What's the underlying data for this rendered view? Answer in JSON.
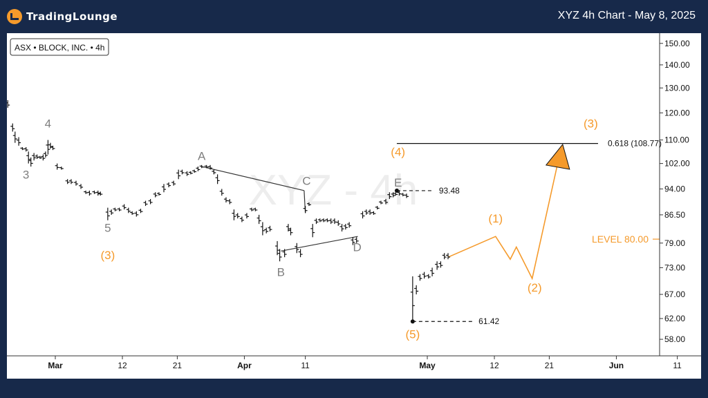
{
  "header": {
    "logo_text": "TradingLounge",
    "chart_title": "XYZ 4h Chart - May 8, 2025"
  },
  "symbol_label": "ASX • BLOCK, INC. • 4h",
  "watermark": "XYZ - 4h",
  "colors": {
    "orange": "#f59a2b",
    "gray_label": "#7f7f7f",
    "bar": "#111111",
    "bg": "#17294a"
  },
  "chart_data": {
    "type": "ohlc",
    "y_scale": "log",
    "ylim": [
      55,
      155
    ],
    "y_ticks": [
      "150.00",
      "140.00",
      "130.00",
      "120.00",
      "110.00",
      "102.00",
      "94.00",
      "86.50",
      "79.00",
      "73.00",
      "67.00",
      "62.00",
      "58.00"
    ],
    "x_ticks": [
      {
        "label": "Mar",
        "day": 0,
        "bold": true
      },
      {
        "label": "12",
        "day": 11,
        "bold": false
      },
      {
        "label": "21",
        "day": 20,
        "bold": false
      },
      {
        "label": "Apr",
        "day": 31,
        "bold": true
      },
      {
        "label": "11",
        "day": 41,
        "bold": false
      },
      {
        "label": "May",
        "day": 61,
        "bold": true
      },
      {
        "label": "12",
        "day": 72,
        "bold": false
      },
      {
        "label": "21",
        "day": 81,
        "bold": false
      },
      {
        "label": "Jun",
        "day": 92,
        "bold": true
      },
      {
        "label": "11",
        "day": 102,
        "bold": false
      }
    ],
    "bars": [
      [
        -8.3,
        121,
        122
      ],
      [
        -7.8,
        122,
        125
      ],
      [
        -7.0,
        113,
        116
      ],
      [
        -6.6,
        109,
        113
      ],
      [
        -6.0,
        108,
        111
      ],
      [
        -5.4,
        106.5,
        107.5
      ],
      [
        -4.8,
        106,
        107.5
      ],
      [
        -4.4,
        102,
        106
      ],
      [
        -4.0,
        101,
        104
      ],
      [
        -3.5,
        103,
        105.5
      ],
      [
        -3.0,
        103.5,
        105
      ],
      [
        -2.5,
        103.5,
        104.5
      ],
      [
        -2.0,
        103,
        105
      ],
      [
        -1.6,
        104,
        106
      ],
      [
        -1.2,
        105,
        110
      ],
      [
        -0.8,
        107,
        109
      ],
      [
        -0.4,
        106.5,
        108
      ],
      [
        0.3,
        100,
        102
      ],
      [
        1.0,
        100,
        101
      ],
      [
        2.0,
        95.5,
        97
      ],
      [
        2.6,
        95.5,
        97
      ],
      [
        3.4,
        95,
        96.5
      ],
      [
        4.2,
        94,
        95.5
      ],
      [
        5.0,
        92.5,
        93.5
      ],
      [
        5.6,
        92,
        93.5
      ],
      [
        6.4,
        92.5,
        93.5
      ],
      [
        7.0,
        92,
        93.5
      ],
      [
        7.4,
        92,
        93.2
      ],
      [
        8.6,
        85,
        88.5
      ],
      [
        9.2,
        86.5,
        88
      ],
      [
        9.8,
        87.5,
        88.5
      ],
      [
        10.5,
        87.5,
        88.5
      ],
      [
        11.3,
        88,
        89.5
      ],
      [
        12.0,
        87,
        88.5
      ],
      [
        12.6,
        86.5,
        87.5
      ],
      [
        13.3,
        86,
        87.5
      ],
      [
        14.0,
        87,
        88.2
      ],
      [
        14.8,
        89,
        90.5
      ],
      [
        15.6,
        89.5,
        91
      ],
      [
        16.4,
        91.5,
        93
      ],
      [
        17.0,
        92,
        93
      ],
      [
        17.8,
        93,
        95.5
      ],
      [
        18.6,
        94.5,
        96
      ],
      [
        19.4,
        95,
        96.5
      ],
      [
        20.2,
        97,
        100
      ],
      [
        20.8,
        98.5,
        100
      ],
      [
        21.6,
        98,
        99.5
      ],
      [
        22.2,
        98.5,
        99.5
      ],
      [
        22.8,
        99,
        100
      ],
      [
        23.4,
        99.5,
        101
      ],
      [
        24.0,
        100.5,
        101.5
      ],
      [
        24.8,
        100.5,
        101.5
      ],
      [
        25.4,
        100,
        101.5
      ],
      [
        26.0,
        98.5,
        100
      ],
      [
        26.6,
        95.5,
        98.5
      ],
      [
        27.3,
        92,
        94
      ],
      [
        28.0,
        90,
        91.5
      ],
      [
        28.6,
        89.5,
        91
      ],
      [
        29.3,
        85,
        88
      ],
      [
        29.9,
        85.5,
        87
      ],
      [
        30.6,
        84.5,
        86
      ],
      [
        31.4,
        85.5,
        87
      ],
      [
        32.2,
        87.5,
        88.5
      ],
      [
        32.8,
        87.5,
        88.5
      ],
      [
        33.4,
        84,
        86.5
      ],
      [
        34.0,
        81,
        84.5
      ],
      [
        34.6,
        81.5,
        83
      ],
      [
        35.2,
        82,
        83.5
      ],
      [
        36.4,
        76,
        79.5
      ],
      [
        36.8,
        74.5,
        77.5
      ],
      [
        37.6,
        75.5,
        77.5
      ],
      [
        38.2,
        82,
        84
      ],
      [
        38.6,
        81,
        83
      ],
      [
        39.6,
        76.5,
        79
      ],
      [
        40.2,
        75.5,
        77.5
      ],
      [
        41.0,
        87,
        89
      ],
      [
        41.6,
        89,
        90
      ],
      [
        42.2,
        80.5,
        84
      ],
      [
        42.8,
        84,
        85.5
      ],
      [
        43.4,
        84.5,
        85.5
      ],
      [
        44.0,
        84.5,
        85.5
      ],
      [
        44.6,
        84.5,
        85.5
      ],
      [
        45.2,
        84,
        85.5
      ],
      [
        45.8,
        84,
        85.5
      ],
      [
        46.4,
        83.5,
        85
      ],
      [
        47.0,
        82,
        84
      ],
      [
        47.6,
        82.5,
        84
      ],
      [
        48.2,
        83,
        84.5
      ],
      [
        48.8,
        78.5,
        80.5
      ],
      [
        49.4,
        79,
        80.5
      ],
      [
        50.4,
        85.5,
        87.5
      ],
      [
        51.0,
        86.5,
        88
      ],
      [
        51.6,
        86.5,
        88
      ],
      [
        52.2,
        86.5,
        87.5
      ],
      [
        52.8,
        88,
        89
      ],
      [
        53.4,
        89.5,
        90.5
      ],
      [
        54.2,
        89.5,
        91
      ],
      [
        54.8,
        91,
        93
      ],
      [
        55.4,
        91.5,
        93
      ],
      [
        55.8,
        92,
        93
      ],
      [
        56.4,
        92,
        93.5
      ],
      [
        57.0,
        91.8,
        92.8
      ],
      [
        57.6,
        91.3,
        92.6
      ],
      [
        58.6,
        61.42,
        71
      ],
      [
        59.2,
        67,
        69
      ],
      [
        59.8,
        70,
        71.5
      ],
      [
        60.5,
        70.5,
        72
      ],
      [
        61.2,
        70.5,
        71.5
      ],
      [
        61.8,
        71,
        73
      ],
      [
        62.6,
        72.5,
        74.5
      ],
      [
        63.2,
        73,
        74.5
      ],
      [
        63.8,
        75,
        76.5
      ],
      [
        64.4,
        75,
        76.5
      ]
    ],
    "wave_labels": [
      {
        "text": "3",
        "day": -4.8,
        "y": 98.5,
        "color": "gray"
      },
      {
        "text": "4",
        "day": -1.2,
        "y": 116,
        "color": "gray"
      },
      {
        "text": "5",
        "day": 8.6,
        "y": 83,
        "color": "gray"
      },
      {
        "text": "(3)",
        "day": 8.6,
        "y": 76,
        "color": "orange"
      },
      {
        "text": "A",
        "day": 24.0,
        "y": 104.5,
        "color": "gray"
      },
      {
        "text": "B",
        "day": 37.0,
        "y": 72,
        "color": "gray"
      },
      {
        "text": "C",
        "day": 41.2,
        "y": 96.5,
        "color": "gray"
      },
      {
        "text": "D",
        "day": 49.5,
        "y": 78,
        "color": "gray"
      },
      {
        "text": "E",
        "day": 56.2,
        "y": 96,
        "color": "gray"
      },
      {
        "text": "(4)",
        "day": 56.2,
        "y": 106,
        "color": "orange"
      },
      {
        "text": "(5)",
        "day": 58.6,
        "y": 59,
        "color": "orange"
      },
      {
        "text": "(1)",
        "day": 72.2,
        "y": 85.5,
        "color": "orange"
      },
      {
        "text": "(2)",
        "day": 78.6,
        "y": 68.5,
        "color": "orange"
      },
      {
        "text": "(3)",
        "day": 87.8,
        "y": 116,
        "color": "orange"
      }
    ],
    "trendlines": [
      {
        "from": [
          24.0,
          101
        ],
        "to": [
          40.8,
          93.5
        ]
      },
      {
        "from": [
          40.8,
          93.5
        ],
        "to": [
          41.0,
          87
        ]
      },
      {
        "from": [
          37.0,
          77
        ],
        "to": [
          49.6,
          80.7
        ]
      }
    ],
    "projection_path": [
      [
        64.4,
        75.5
      ],
      [
        72.2,
        80.7
      ],
      [
        74.6,
        75
      ],
      [
        75.6,
        78
      ],
      [
        78.2,
        70.5
      ],
      [
        82.6,
        104
      ]
    ],
    "target_arrow": {
      "day": 83.2,
      "y": 107.5
    },
    "levels": [
      {
        "from_day": 56.0,
        "to_day": 89.0,
        "y": 108.77,
        "style": "solid",
        "label": "0.618 (108.77)",
        "label_color": "#111111"
      },
      {
        "from_day": 56.0,
        "to_day": 62.0,
        "y": 93.48,
        "style": "dashed",
        "label": "93.48",
        "label_color": "#111111"
      },
      {
        "from_day": 58.6,
        "to_day": 68.5,
        "y": 61.42,
        "style": "dashed",
        "label": "61.42",
        "label_color": "#111111"
      }
    ],
    "level_80": {
      "y": 80.0,
      "label": "LEVEL 80.00"
    },
    "pivot_points": [
      [
        56.0,
        93.48
      ],
      [
        58.6,
        61.42
      ]
    ]
  }
}
